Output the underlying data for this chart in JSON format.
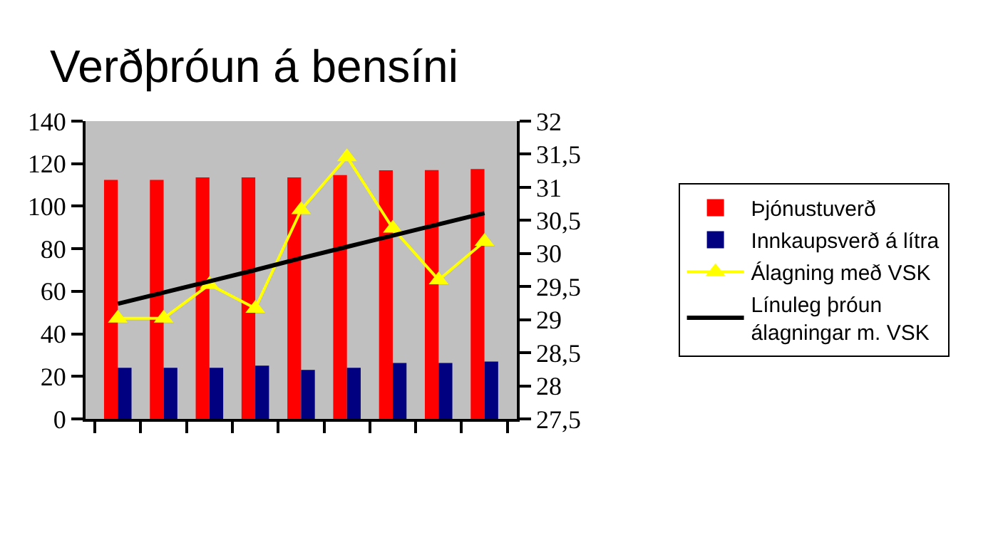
{
  "chart_data": {
    "type": "bar",
    "title": "Verðþróun á bensíni",
    "categories": [
      null,
      null,
      null,
      null,
      null,
      null,
      null,
      null,
      null
    ],
    "series": [
      {
        "name": "Þjónustuverð",
        "color": "#ff0000",
        "values": [
          112.4,
          112.4,
          113.5,
          113.5,
          113.5,
          114.6,
          116.9,
          117,
          117.5
        ]
      },
      {
        "name": "Innkaupsverð á lítra",
        "color": "#000080",
        "values": [
          24,
          24,
          24,
          25,
          23,
          24,
          26.3,
          26.3,
          27
        ]
      },
      {
        "name": "Álagning með VSK",
        "type": "line",
        "axis": "y2",
        "color": "#ffff00",
        "marker": "triangle",
        "values": [
          29.02,
          29.02,
          29.53,
          29.17,
          30.66,
          31.46,
          30.38,
          29.6,
          30.18
        ]
      },
      {
        "name": "Línuleg þróun\nálagningar m. VSK",
        "type": "line",
        "axis": "y2",
        "color": "#000000",
        "marker": "none",
        "values": [
          29.24,
          29.41,
          29.58,
          29.75,
          29.93,
          30.1,
          30.27,
          30.44,
          30.61
        ]
      }
    ],
    "ylim": [
      0,
      140
    ],
    "yticks": [
      0,
      20,
      40,
      60,
      80,
      100,
      120,
      140
    ],
    "y2lim": [
      27.5,
      32
    ],
    "y2ticks": [
      {
        "value": 27.5,
        "label": "27,5"
      },
      {
        "value": 28,
        "label": "28"
      },
      {
        "value": 28.5,
        "label": "28,5"
      },
      {
        "value": 29,
        "label": "29"
      },
      {
        "value": 29.5,
        "label": "29,5"
      },
      {
        "value": 30,
        "label": "30"
      },
      {
        "value": 30.5,
        "label": "30,5"
      },
      {
        "value": 31,
        "label": "31"
      },
      {
        "value": 31.5,
        "label": "31,5"
      },
      {
        "value": 32,
        "label": "32"
      }
    ],
    "tick_labels": "y",
    "legend": "right"
  }
}
